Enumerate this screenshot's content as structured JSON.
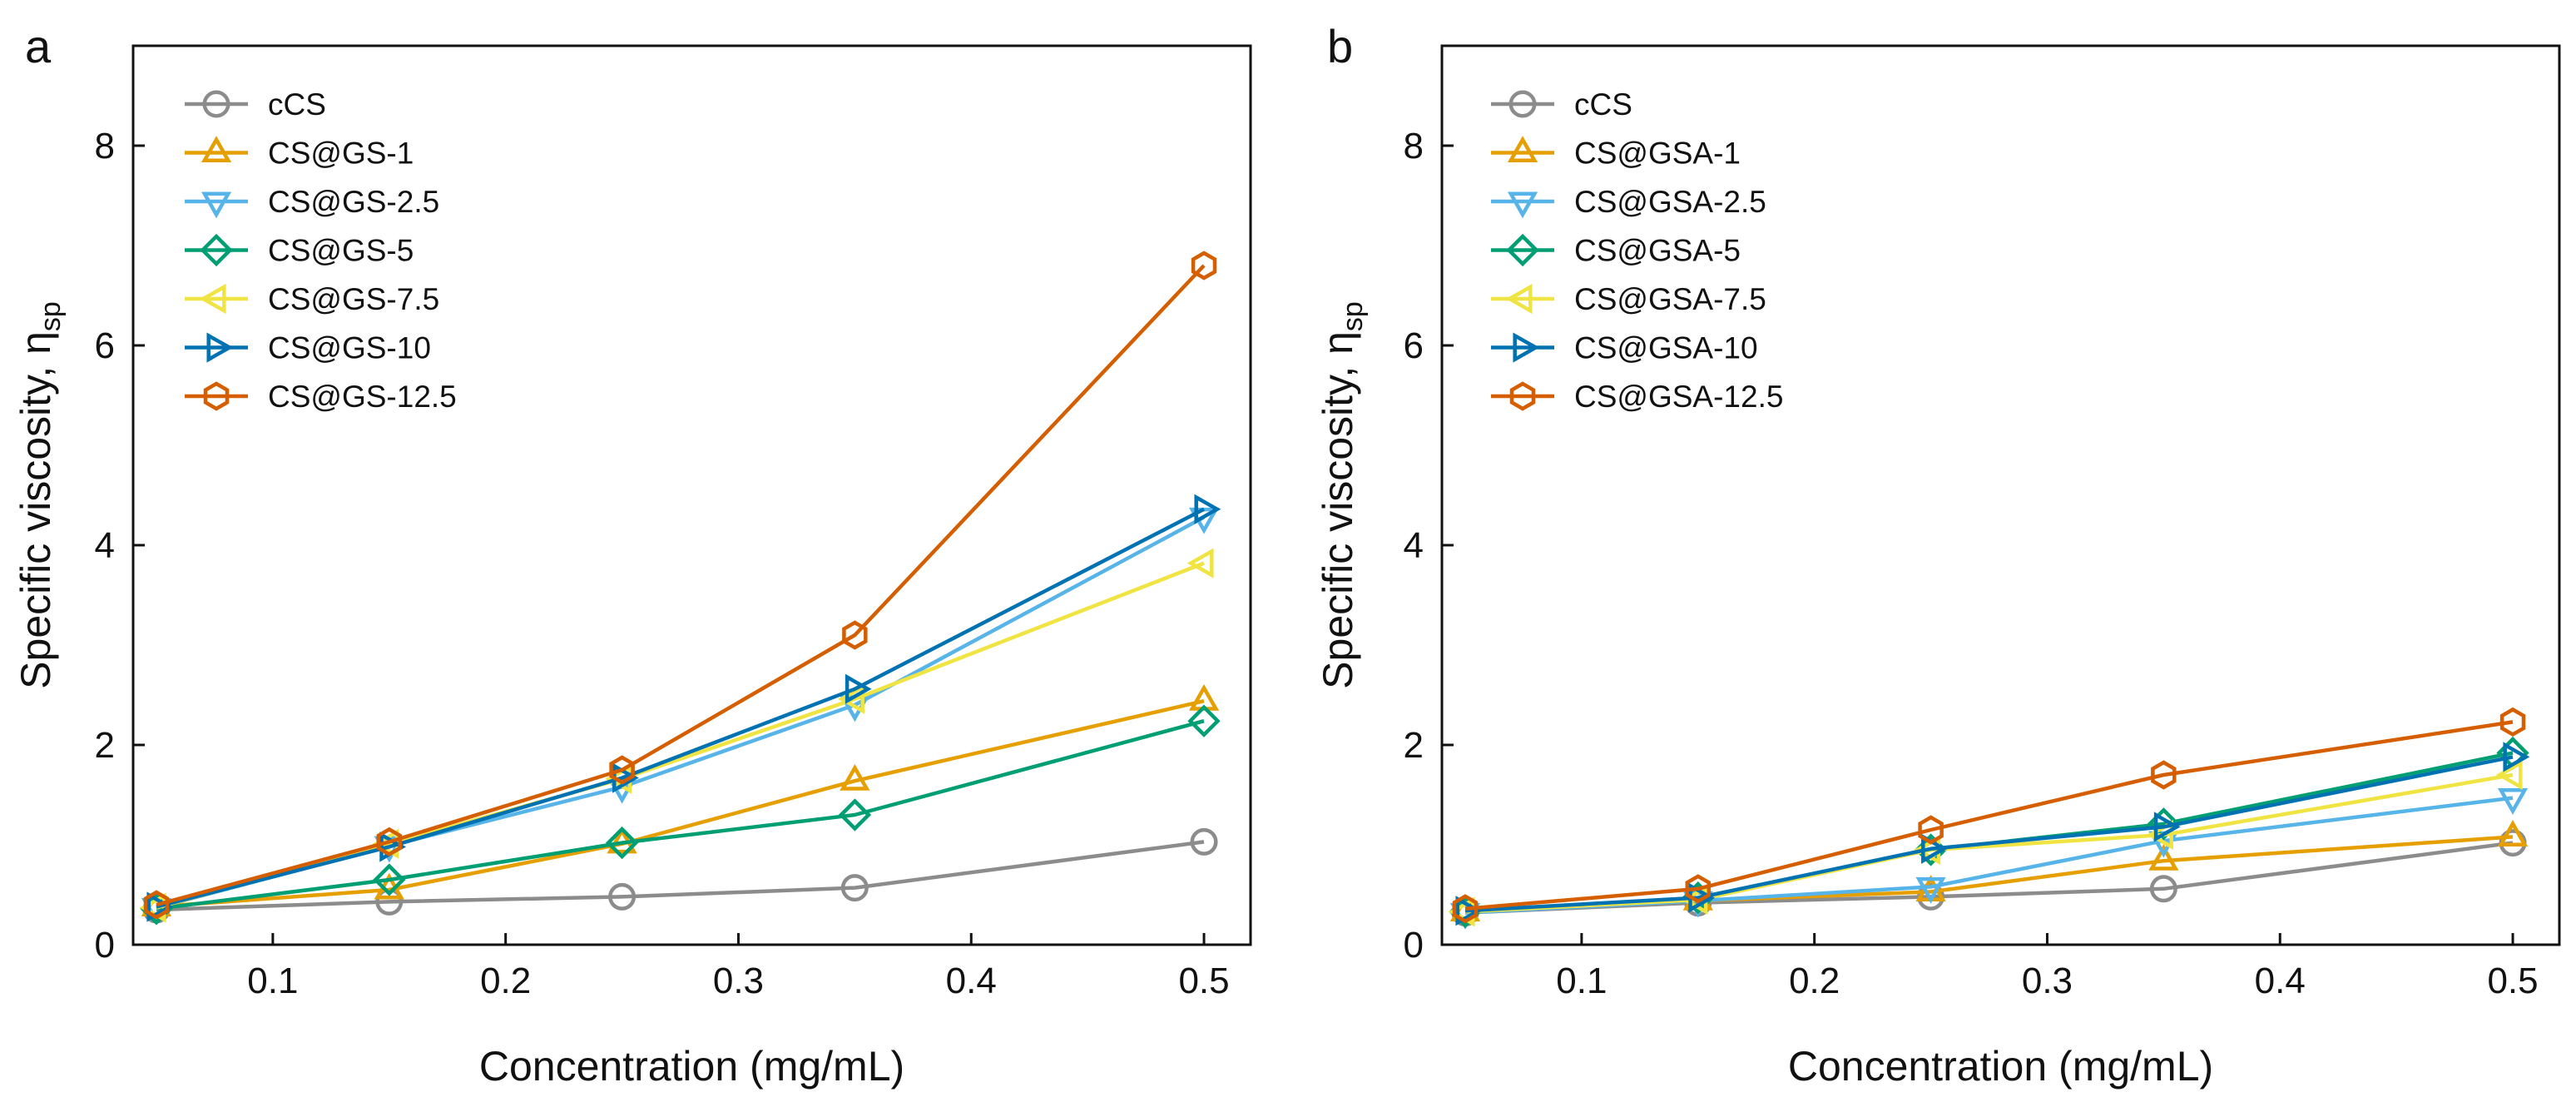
{
  "chart_data": [
    {
      "panel": "a",
      "type": "line",
      "xlabel": "Concentration (mg/mL)",
      "ylabel": "Specific viscosity, η",
      "ylabel_sub": "sp",
      "x": [
        0.05,
        0.15,
        0.25,
        0.35,
        0.5
      ],
      "xlim": [
        0.04,
        0.52
      ],
      "ylim": [
        0,
        9
      ],
      "xticks": [
        0.1,
        0.2,
        0.3,
        0.4,
        0.5
      ],
      "xtick_labels": [
        "0.1",
        "0.2",
        "0.3",
        "0.4",
        "0.5"
      ],
      "yticks": [
        0,
        2,
        4,
        6,
        8
      ],
      "ytick_labels": [
        "0",
        "2",
        "4",
        "6",
        "8"
      ],
      "legend_position": "top-left",
      "series": [
        {
          "name": "cCS",
          "color": "#8c8c8c",
          "marker": "circle",
          "values": [
            0.35,
            0.43,
            0.48,
            0.57,
            1.03
          ]
        },
        {
          "name": "CS@GS-1",
          "color": "#e69f00",
          "marker": "triangle-up",
          "values": [
            0.38,
            0.55,
            1.01,
            1.64,
            2.44
          ]
        },
        {
          "name": "CS@GS-2.5",
          "color": "#56b4e9",
          "marker": "triangle-down",
          "values": [
            0.37,
            0.99,
            1.58,
            2.4,
            4.28
          ]
        },
        {
          "name": "CS@GS-5",
          "color": "#009e73",
          "marker": "diamond",
          "values": [
            0.36,
            0.65,
            1.02,
            1.3,
            2.24
          ]
        },
        {
          "name": "CS@GS-7.5",
          "color": "#f0e442",
          "marker": "triangle-left",
          "values": [
            0.37,
            1.01,
            1.66,
            2.46,
            3.82
          ]
        },
        {
          "name": "CS@GS-10",
          "color": "#0072b2",
          "marker": "triangle-right",
          "values": [
            0.38,
            0.98,
            1.67,
            2.56,
            4.36
          ]
        },
        {
          "name": "CS@GS-12.5",
          "color": "#d55e00",
          "marker": "hexagon",
          "values": [
            0.4,
            1.03,
            1.75,
            3.1,
            6.8
          ]
        }
      ]
    },
    {
      "panel": "b",
      "type": "line",
      "xlabel": "Concentration (mg/mL)",
      "ylabel": "Specific viscosity, η",
      "ylabel_sub": "sp",
      "x": [
        0.05,
        0.15,
        0.25,
        0.35,
        0.5
      ],
      "xlim": [
        0.04,
        0.52
      ],
      "ylim": [
        0,
        9
      ],
      "xticks": [
        0.1,
        0.2,
        0.3,
        0.4,
        0.5
      ],
      "xtick_labels": [
        "0.1",
        "0.2",
        "0.3",
        "0.4",
        "0.5"
      ],
      "yticks": [
        0,
        2,
        4,
        6,
        8
      ],
      "ytick_labels": [
        "0",
        "2",
        "4",
        "6",
        "8"
      ],
      "legend_position": "top-left",
      "series": [
        {
          "name": "cCS",
          "color": "#8c8c8c",
          "marker": "circle",
          "values": [
            0.32,
            0.42,
            0.48,
            0.56,
            1.02
          ]
        },
        {
          "name": "CS@GSA-1",
          "color": "#e69f00",
          "marker": "triangle-up",
          "values": [
            0.33,
            0.44,
            0.53,
            0.84,
            1.08
          ]
        },
        {
          "name": "CS@GSA-2.5",
          "color": "#56b4e9",
          "marker": "triangle-down",
          "values": [
            0.32,
            0.44,
            0.58,
            1.04,
            1.47
          ]
        },
        {
          "name": "CS@GSA-5",
          "color": "#009e73",
          "marker": "diamond",
          "values": [
            0.33,
            0.47,
            0.95,
            1.21,
            1.92
          ]
        },
        {
          "name": "CS@GSA-7.5",
          "color": "#f0e442",
          "marker": "triangle-left",
          "values": [
            0.33,
            0.45,
            0.95,
            1.1,
            1.7
          ]
        },
        {
          "name": "CS@GSA-10",
          "color": "#0072b2",
          "marker": "triangle-right",
          "values": [
            0.34,
            0.47,
            0.96,
            1.18,
            1.88
          ]
        },
        {
          "name": "CS@GSA-12.5",
          "color": "#d55e00",
          "marker": "hexagon",
          "values": [
            0.36,
            0.56,
            1.15,
            1.7,
            2.23
          ]
        }
      ]
    }
  ]
}
